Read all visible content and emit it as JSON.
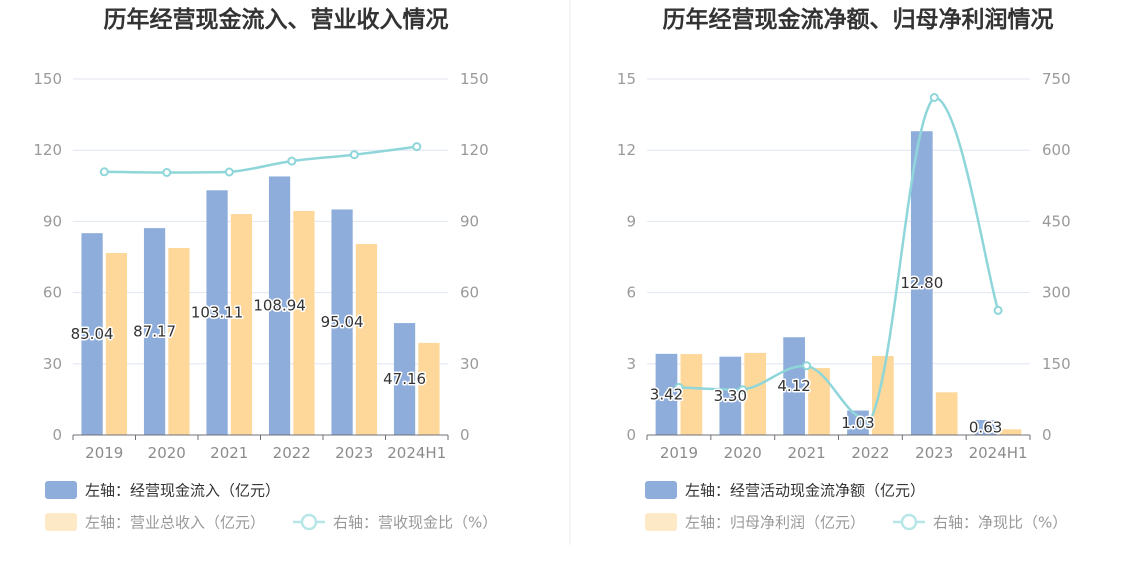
{
  "chart_data": [
    {
      "type": "bar",
      "title": "历年经营现金流入、营业收入情况",
      "categories": [
        "2019",
        "2020",
        "2021",
        "2022",
        "2023",
        "2024H1"
      ],
      "y_left": {
        "range": [
          0,
          150
        ],
        "ticks": [
          0,
          30,
          60,
          90,
          120,
          150
        ]
      },
      "y_right": {
        "range": [
          0,
          150
        ],
        "ticks": [
          0,
          30,
          60,
          90,
          120,
          150
        ]
      },
      "grid": true,
      "legend_position": "bottom-left",
      "series": [
        {
          "name": "左轴：经营现金流入（亿元）",
          "type": "bar",
          "axis": "left",
          "color": "#8eaddb",
          "legend_color": "#8eaddb",
          "values": [
            85.04,
            87.17,
            103.11,
            108.94,
            95.04,
            47.16
          ],
          "data_labels": [
            "85.04",
            "87.17",
            "103.11",
            "108.94",
            "95.04",
            "47.16"
          ]
        },
        {
          "name": "左轴：营业总收入（亿元）",
          "type": "bar",
          "axis": "left",
          "color": "#fed89a",
          "legend_color": "#fde9c6",
          "values": [
            76.7,
            78.8,
            93.1,
            94.4,
            80.5,
            38.8
          ]
        },
        {
          "name": "右轴：营收现金比（%）",
          "type": "line",
          "axis": "right",
          "color": "#8ed6d9",
          "legend_color": "#b8e6e8",
          "values": [
            110.9,
            110.6,
            110.8,
            115.4,
            118.1,
            121.5
          ]
        }
      ]
    },
    {
      "type": "bar",
      "title": "历年经营现金流净额、归母净利润情况",
      "categories": [
        "2019",
        "2020",
        "2021",
        "2022",
        "2023",
        "2024H1"
      ],
      "y_left": {
        "range": [
          0,
          15
        ],
        "ticks": [
          0,
          3,
          6,
          9,
          12,
          15
        ]
      },
      "y_right": {
        "range": [
          0,
          750
        ],
        "ticks": [
          0,
          150,
          300,
          450,
          600,
          750
        ]
      },
      "grid": true,
      "legend_position": "bottom-left",
      "series": [
        {
          "name": "左轴：经营活动现金流净额（亿元）",
          "type": "bar",
          "axis": "left",
          "color": "#8eaddb",
          "legend_color": "#8eaddb",
          "values": [
            3.42,
            3.3,
            4.12,
            1.03,
            12.8,
            0.63
          ],
          "data_labels": [
            "3.42",
            "3.30",
            "4.12",
            "1.03",
            "12.80",
            "0.63"
          ]
        },
        {
          "name": "左轴：归母净利润（亿元）",
          "type": "bar",
          "axis": "left",
          "color": "#fed89a",
          "legend_color": "#fde9c6",
          "values": [
            3.41,
            3.46,
            2.82,
            3.33,
            1.8,
            0.24
          ]
        },
        {
          "name": "右轴：净现比（%）",
          "type": "line",
          "axis": "right",
          "color": "#8ed6d9",
          "legend_color": "#b8e6e8",
          "values": [
            100.3,
            95.4,
            146.1,
            30.9,
            711.1,
            262.5
          ]
        }
      ]
    }
  ]
}
